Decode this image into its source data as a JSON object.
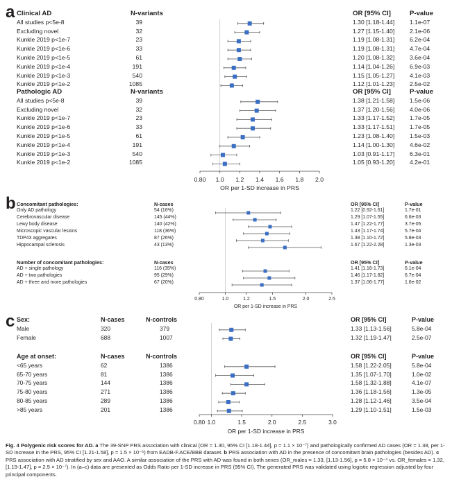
{
  "panels": [
    {
      "letter": "a",
      "groups": [
        {
          "title": "Clinical AD",
          "count_header": "N-variants",
          "or_header": "OR [95% CI]",
          "p_header": "P-value",
          "rows": [
            {
              "label": "All studies p<5e-8",
              "count": "39",
              "or_text": "1.30 [1.18-1.44]",
              "p": "1.1e-07"
            },
            {
              "label": "Excluding novel",
              "count": "32",
              "or_text": "1.27 [1.15-1.40]",
              "p": "2.1e-06"
            },
            {
              "label": "Kunkle 2019 p<1e-7",
              "count": "23",
              "or_text": "1.19 [1.08-1.31]",
              "p": "6.2e-04"
            },
            {
              "label": "Kunkle 2019 p<1e-6",
              "count": "33",
              "or_text": "1.19 [1.08-1.31]",
              "p": "4.7e-04"
            },
            {
              "label": "Kunkle 2019 p<1e-5",
              "count": "61",
              "or_text": "1.20 [1.08-1.32]",
              "p": "3.6e-04"
            },
            {
              "label": "Kunkle 2019 p<1e-4",
              "count": "191",
              "or_text": "1.14 [1.04-1.26]",
              "p": "6.9e-03"
            },
            {
              "label": "Kunkle 2019 p<1e-3",
              "count": "540",
              "or_text": "1.15 [1.05-1.27]",
              "p": "4.1e-03"
            },
            {
              "label": "Kunkle 2019 p<1e-2",
              "count": "1085",
              "or_text": "1.12 [1.01-1.23]",
              "p": "2.5e-02"
            }
          ]
        },
        {
          "title": "Pathologic AD",
          "count_header": "N-variants",
          "or_header": "OR [95% CI]",
          "p_header": "P-value",
          "rows": [
            {
              "label": "All studies p<5e-8",
              "count": "39",
              "or_text": "1.38 [1.21-1.58]",
              "p": "1.5e-06"
            },
            {
              "label": "Excluding novel",
              "count": "32",
              "or_text": "1.37 [1.20-1.56]",
              "p": "4.0e-06"
            },
            {
              "label": "Kunkle 2019 p<1e-7",
              "count": "23",
              "or_text": "1.33 [1.17-1.52]",
              "p": "1.7e-05"
            },
            {
              "label": "Kunkle 2019 p<1e-6",
              "count": "33",
              "or_text": "1.33 [1.17-1.51]",
              "p": "1.7e-05"
            },
            {
              "label": "Kunkle 2019 p<1e-5",
              "count": "61",
              "or_text": "1.23 [1.08-1.40]",
              "p": "1.5e-03"
            },
            {
              "label": "Kunkle 2019 p<1e-4",
              "count": "191",
              "or_text": "1.14 [1.00-1.30]",
              "p": "4.6e-02"
            },
            {
              "label": "Kunkle 2019 p<1e-3",
              "count": "540",
              "or_text": "1.03 [0.91-1.17]",
              "p": "6.3e-01"
            },
            {
              "label": "Kunkle 2019 p<1e-2",
              "count": "1085",
              "or_text": "1.05 [0.93-1.20]",
              "p": "4.2e-01"
            }
          ]
        }
      ],
      "axis": {
        "min": 0.8,
        "max": 2.0,
        "ticks": [
          "0.80",
          "1.0",
          "1.2",
          "1.4",
          "1.6",
          "1.8",
          "2.0"
        ],
        "label": "OR per 1-SD increase in PRS"
      }
    },
    {
      "letter": "b",
      "groups": [
        {
          "title": "Concomitant pathologies:",
          "count_header": "N-cases",
          "or_header": "OR [95% CI]",
          "p_header": "P-value",
          "rows": [
            {
              "label": "Only AD pathology",
              "count": "54 (16%)",
              "or_text": "1.22 [0.92-1.61]",
              "p": "1.7e-01"
            },
            {
              "label": "Cerebrovascular disease",
              "count": "145 (44%)",
              "or_text": "1.29 [1.07-1.55]",
              "p": "6.6e-03"
            },
            {
              "label": "Lewy body disease",
              "count": "140 (42%)",
              "or_text": "1.47 [1.22-1.77]",
              "p": "3.7e-05"
            },
            {
              "label": "Microscopic vascular lesions",
              "count": "118 (36%)",
              "or_text": "1.43 [1.17-1.74]",
              "p": "5.7e-04"
            },
            {
              "label": "TDP43 aggregates",
              "count": "87 (26%)",
              "or_text": "1.38 [1.10-1.72]",
              "p": "5.8e-03"
            },
            {
              "label": "Hippocampal sclerosis",
              "count": "43 (13%)",
              "or_text": "1.67 [1.22-2.28]",
              "p": "1.3e-03"
            }
          ]
        },
        {
          "title": "Number of concomitant pathologies:",
          "count_header": "N-cases",
          "or_header": "OR [95% CI]",
          "p_header": "P-value",
          "rows": [
            {
              "label": "AD + single pathology",
              "count": "116 (35%)",
              "or_text": "1.41 [1.16-1.73]",
              "p": "6.1e-04"
            },
            {
              "label": "AD + two pathologies",
              "count": "95 (29%)",
              "or_text": "1.46 [1.17-1.82]",
              "p": "6.7e-04"
            },
            {
              "label": "AD + three and more pathologies",
              "count": "67 (20%)",
              "or_text": "1.37 [1.06-1.77]",
              "p": "1.6e-02"
            }
          ]
        }
      ],
      "axis": {
        "min": 0.8,
        "max": 2.5,
        "ticks": [
          "0.80",
          "1.0",
          "1.2",
          "1.5",
          "2.0",
          "2.5"
        ],
        "label": "OR per 1-SD increase in PRS"
      }
    },
    {
      "letter": "c",
      "groups": [
        {
          "title": "Sex:",
          "count_header": "N-cases",
          "controls_header": "N-controls",
          "or_header": "OR [95% CI]",
          "p_header": "P-value",
          "rows": [
            {
              "label": "Male",
              "count": "320",
              "controls": "379",
              "or_text": "1.33 [1.13-1.56]",
              "p": "5.8e-04"
            },
            {
              "label": "Female",
              "count": "688",
              "controls": "1007",
              "or_text": "1.32 [1.19-1.47]",
              "p": "2.5e-07"
            }
          ]
        },
        {
          "title": "Age at onset:",
          "count_header": "N-cases",
          "controls_header": "N-controls",
          "or_header": "OR [95% CI]",
          "p_header": "P-value",
          "rows": [
            {
              "label": "<65 years",
              "count": "62",
              "controls": "1386",
              "or_text": "1.58 [1.22-2.05]",
              "p": "5.8e-04"
            },
            {
              "label": "65-70 years",
              "count": "81",
              "controls": "1386",
              "or_text": "1.35 [1.07-1.70]",
              "p": "1.0e-02"
            },
            {
              "label": "70-75 years",
              "count": "144",
              "controls": "1386",
              "or_text": "1.58 [1.32-1.88]",
              "p": "4.1e-07"
            },
            {
              "label": "75-80 years",
              "count": "271",
              "controls": "1386",
              "or_text": "1.36 [1.18-1.56]",
              "p": "1.3e-05"
            },
            {
              "label": "80-85 years",
              "count": "289",
              "controls": "1386",
              "or_text": "1.28 [1.12-1.46]",
              "p": "3.5e-04"
            },
            {
              "label": ">85 years",
              "count": "201",
              "controls": "1386",
              "or_text": "1.29 [1.10-1.51]",
              "p": "1.5e-03"
            }
          ]
        }
      ],
      "axis": {
        "min": 0.8,
        "max": 3.0,
        "ticks": [
          "0.80",
          "1.0",
          "1.5",
          "2.0",
          "2.5",
          "3.0"
        ],
        "label": "OR per 1-SD increase in PRS"
      }
    }
  ],
  "chart_data": [
    {
      "type": "forest",
      "panel": "a",
      "xlabel": "OR per 1-SD increase in PRS",
      "xlim": [
        0.8,
        2.0
      ],
      "reference_line": 1.0,
      "series": [
        {
          "name": "Clinical AD",
          "categories": [
            "All studies p<5e-8",
            "Excluding novel",
            "Kunkle 2019 p<1e-7",
            "Kunkle 2019 p<1e-6",
            "Kunkle 2019 p<1e-5",
            "Kunkle 2019 p<1e-4",
            "Kunkle 2019 p<1e-3",
            "Kunkle 2019 p<1e-2"
          ],
          "or": [
            1.3,
            1.27,
            1.19,
            1.19,
            1.2,
            1.14,
            1.15,
            1.12
          ],
          "lower": [
            1.18,
            1.15,
            1.08,
            1.08,
            1.08,
            1.04,
            1.05,
            1.01
          ],
          "upper": [
            1.44,
            1.4,
            1.31,
            1.31,
            1.32,
            1.26,
            1.27,
            1.23
          ]
        },
        {
          "name": "Pathologic AD",
          "categories": [
            "All studies p<5e-8",
            "Excluding novel",
            "Kunkle 2019 p<1e-7",
            "Kunkle 2019 p<1e-6",
            "Kunkle 2019 p<1e-5",
            "Kunkle 2019 p<1e-4",
            "Kunkle 2019 p<1e-3",
            "Kunkle 2019 p<1e-2"
          ],
          "or": [
            1.38,
            1.37,
            1.33,
            1.33,
            1.23,
            1.14,
            1.03,
            1.05
          ],
          "lower": [
            1.21,
            1.2,
            1.17,
            1.17,
            1.08,
            1.0,
            0.91,
            0.93
          ],
          "upper": [
            1.58,
            1.56,
            1.52,
            1.51,
            1.4,
            1.3,
            1.17,
            1.2
          ]
        }
      ]
    },
    {
      "type": "forest",
      "panel": "b",
      "xlabel": "OR per 1-SD increase in PRS",
      "xlim": [
        0.8,
        2.5
      ],
      "x_scale": "log",
      "reference_line": 1.0,
      "series": [
        {
          "name": "Concomitant pathologies:",
          "categories": [
            "Only AD pathology",
            "Cerebrovascular disease",
            "Lewy body disease",
            "Microscopic vascular lesions",
            "TDP43 aggregates",
            "Hippocampal sclerosis"
          ],
          "or": [
            1.22,
            1.29,
            1.47,
            1.43,
            1.38,
            1.67
          ],
          "lower": [
            0.92,
            1.07,
            1.22,
            1.17,
            1.1,
            1.22
          ],
          "upper": [
            1.61,
            1.55,
            1.77,
            1.74,
            1.72,
            2.28
          ]
        },
        {
          "name": "Number of concomitant pathologies:",
          "categories": [
            "AD + single pathology",
            "AD + two pathologies",
            "AD + three and more pathologies"
          ],
          "or": [
            1.41,
            1.46,
            1.37
          ],
          "lower": [
            1.16,
            1.17,
            1.06
          ],
          "upper": [
            1.73,
            1.82,
            1.77
          ]
        }
      ]
    },
    {
      "type": "forest",
      "panel": "c",
      "xlabel": "OR per 1-SD increase in PRS",
      "xlim": [
        0.8,
        3.0
      ],
      "reference_line": 1.0,
      "series": [
        {
          "name": "Sex:",
          "categories": [
            "Male",
            "Female"
          ],
          "or": [
            1.33,
            1.32
          ],
          "lower": [
            1.13,
            1.19
          ],
          "upper": [
            1.56,
            1.47
          ]
        },
        {
          "name": "Age at onset:",
          "categories": [
            "<65 years",
            "65-70 years",
            "70-75 years",
            "75-80 years",
            "80-85 years",
            ">85 years"
          ],
          "or": [
            1.58,
            1.35,
            1.58,
            1.36,
            1.28,
            1.29
          ],
          "lower": [
            1.22,
            1.07,
            1.32,
            1.18,
            1.12,
            1.1
          ],
          "upper": [
            2.05,
            1.7,
            1.88,
            1.56,
            1.46,
            1.51
          ]
        }
      ]
    }
  ],
  "caption": {
    "title": "Fig. 4 Polygenic risk scores for AD.",
    "a_label": "a",
    "a_text": "The 39-SNP PRS association with clinical (OR = 1.30, 95% CI [1.18-1.44], p = 1.1 × 10⁻⁷) and pathologically confirmed AD cases (OR = 1.38, per 1-SD increase in the PRS, 95% CI [1.21-1.58], p = 1.5 × 10⁻⁶) from EADB-F.ACE/BBB dataset.",
    "b_label": "b",
    "b_text": "PRS association with AD in the presence of concomitant brain pathologies (besides AD).",
    "c_label": "c",
    "c_text": "PRS association with AD stratified by sex and AAO. A similar association of the PRS with AD was found in both sexes (OR_males = 1.33, [1.13-1.56], p = 5.8 × 10⁻⁴ vs. OR_females = 1.32, [1.19-1.47], p = 2.5 × 10⁻⁷). In (a–c) data are presented as Odds Ratio per 1-SD increase in PRS (95% CI). The generated PRS was validated using logistic regression adjusted by four principal components."
  }
}
